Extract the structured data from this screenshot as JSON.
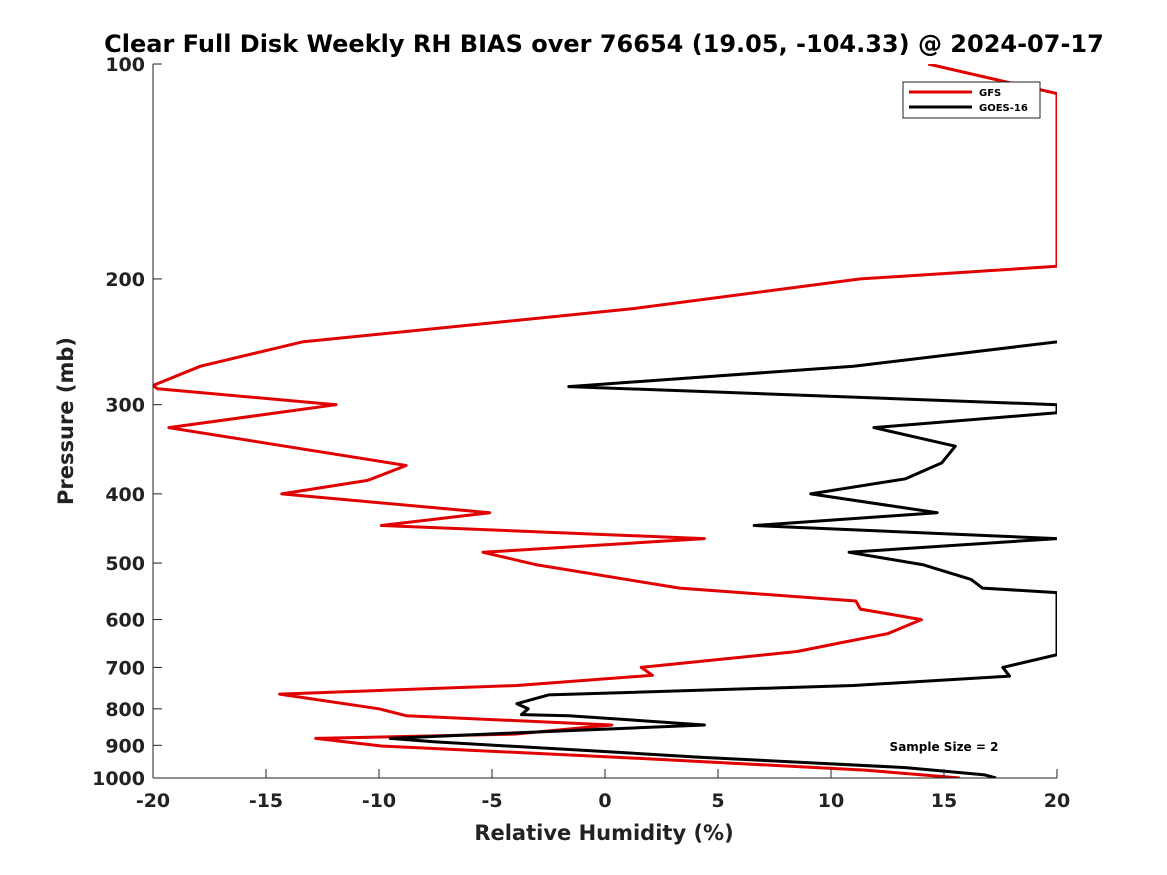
{
  "chart_data": {
    "type": "line",
    "title": "Clear Full Disk Weekly RH BIAS over 76654 (19.05, -104.33) @ 2024-07-17",
    "xlabel": "Relative Humidity (%)",
    "ylabel": "Pressure (mb)",
    "xlim": [
      -20,
      20
    ],
    "ylim": [
      100,
      1000
    ],
    "y_scale": "log",
    "y_reversed": true,
    "x_ticks": [
      -20,
      -15,
      -10,
      -5,
      0,
      5,
      10,
      15,
      20
    ],
    "x_tick_labels": [
      "-20",
      "-15",
      "-10",
      "-5",
      "0",
      "5",
      "10",
      "15",
      "20"
    ],
    "y_ticks": [
      100,
      200,
      300,
      400,
      500,
      600,
      700,
      800,
      900,
      1000
    ],
    "y_tick_labels": [
      "100",
      "200",
      "300",
      "400",
      "500",
      "600",
      "700",
      "800",
      "900",
      "1000"
    ],
    "legend_position": "top-right",
    "annotation": "Sample Size = 2",
    "series": [
      {
        "name": "GFS",
        "color": "#e00000",
        "points": [
          [
            14.3,
            100
          ],
          [
            20,
            110
          ],
          [
            20,
            192
          ],
          [
            11.3,
            200
          ],
          [
            1.3,
            220
          ],
          [
            -13.4,
            245
          ],
          [
            -17.9,
            265
          ],
          [
            -20,
            282
          ],
          [
            -19.8,
            285
          ],
          [
            -11.9,
            300
          ],
          [
            -19.3,
            323
          ],
          [
            -8.8,
            365
          ],
          [
            -10.5,
            383
          ],
          [
            -14.3,
            400
          ],
          [
            -5.1,
            425
          ],
          [
            -9.9,
            443
          ],
          [
            4.4,
            462
          ],
          [
            -5.4,
            483
          ],
          [
            -3.0,
            503
          ],
          [
            3.3,
            542
          ],
          [
            11.1,
            565
          ],
          [
            11.3,
            580
          ],
          [
            14.0,
            600
          ],
          [
            12.5,
            628
          ],
          [
            10.6,
            645
          ],
          [
            8.5,
            665
          ],
          [
            1.6,
            700
          ],
          [
            2.1,
            718
          ],
          [
            -3.9,
            742
          ],
          [
            -14.4,
            763
          ],
          [
            -10.0,
            800
          ],
          [
            -8.8,
            818
          ],
          [
            0.3,
            843
          ],
          [
            -4.0,
            868
          ],
          [
            -12.8,
            880
          ],
          [
            -9.9,
            902
          ],
          [
            0.5,
            935
          ],
          [
            11.5,
            975
          ],
          [
            15.7,
            1000
          ]
        ]
      },
      {
        "name": "GOES-16",
        "color": "#000000",
        "points": [
          [
            20,
            245
          ],
          [
            11.0,
            265
          ],
          [
            -1.6,
            283
          ],
          [
            20,
            300
          ],
          [
            20,
            308
          ],
          [
            11.9,
            323
          ],
          [
            15.5,
            343
          ],
          [
            14.9,
            362
          ],
          [
            13.3,
            381
          ],
          [
            9.1,
            400
          ],
          [
            14.7,
            425
          ],
          [
            6.6,
            443
          ],
          [
            20,
            462
          ],
          [
            10.8,
            483
          ],
          [
            14.1,
            503
          ],
          [
            16.2,
            527
          ],
          [
            16.7,
            542
          ],
          [
            20,
            550
          ],
          [
            20,
            672
          ],
          [
            17.6,
            700
          ],
          [
            17.9,
            720
          ],
          [
            11.0,
            742
          ],
          [
            -2.5,
            765
          ],
          [
            -3.9,
            787
          ],
          [
            -3.4,
            800
          ],
          [
            -3.7,
            815
          ],
          [
            -1.6,
            818
          ],
          [
            4.4,
            843
          ],
          [
            -4.1,
            865
          ],
          [
            -9.5,
            880
          ],
          [
            -7.5,
            890
          ],
          [
            -0.8,
            915
          ],
          [
            4.2,
            935
          ],
          [
            13.3,
            967
          ],
          [
            16.8,
            990
          ],
          [
            17.3,
            1000
          ]
        ]
      }
    ]
  }
}
